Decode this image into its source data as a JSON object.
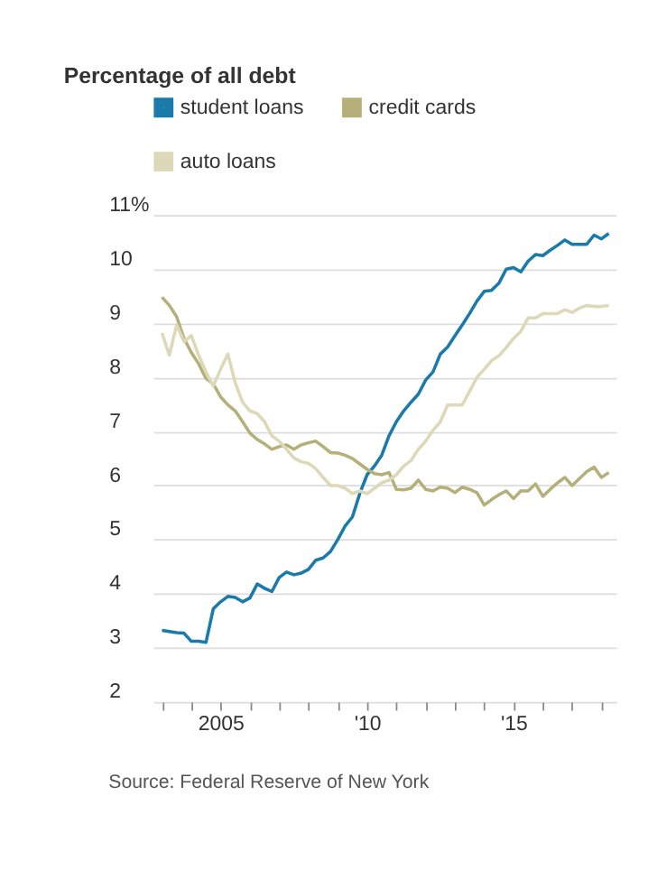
{
  "chart_data": {
    "type": "line",
    "title": "Percentage of all debt",
    "x": [
      2003.0,
      2003.25,
      2003.5,
      2003.75,
      2004.0,
      2004.25,
      2004.5,
      2004.75,
      2005.0,
      2005.25,
      2005.5,
      2005.75,
      2006.0,
      2006.25,
      2006.5,
      2006.75,
      2007.0,
      2007.25,
      2007.5,
      2007.75,
      2008.0,
      2008.25,
      2008.5,
      2008.75,
      2009.0,
      2009.25,
      2009.5,
      2009.75,
      2010.0,
      2010.25,
      2010.5,
      2010.75,
      2011.0,
      2011.25,
      2011.5,
      2011.75,
      2012.0,
      2012.25,
      2012.5,
      2012.75,
      2013.0,
      2013.25,
      2013.5,
      2013.75,
      2014.0,
      2014.25,
      2014.5,
      2014.75,
      2015.0,
      2015.25,
      2015.5,
      2015.75,
      2016.0,
      2016.25,
      2016.5,
      2016.75,
      2017.0,
      2017.25,
      2017.5,
      2017.75,
      2018.0,
      2018.25
    ],
    "series": [
      {
        "name": "student loans",
        "color": "#1a7bab",
        "values": [
          3.32,
          3.3,
          3.28,
          3.27,
          3.12,
          3.12,
          3.1,
          3.72,
          3.85,
          3.95,
          3.93,
          3.85,
          3.92,
          4.18,
          4.1,
          4.04,
          4.3,
          4.4,
          4.35,
          4.38,
          4.45,
          4.62,
          4.66,
          4.78,
          5.0,
          5.25,
          5.42,
          5.85,
          6.2,
          6.36,
          6.56,
          6.92,
          7.18,
          7.38,
          7.54,
          7.69,
          7.95,
          8.1,
          8.43,
          8.56,
          8.77,
          8.97,
          9.18,
          9.41,
          9.59,
          9.61,
          9.74,
          10.0,
          10.03,
          9.95,
          10.15,
          10.27,
          10.25,
          10.35,
          10.44,
          10.54,
          10.46,
          10.46,
          10.46,
          10.63,
          10.56,
          10.66
        ]
      },
      {
        "name": "credit cards",
        "color": "#b5b07a",
        "values": [
          9.48,
          9.33,
          9.12,
          8.72,
          8.46,
          8.25,
          7.98,
          7.88,
          7.64,
          7.49,
          7.38,
          7.18,
          6.97,
          6.85,
          6.77,
          6.67,
          6.72,
          6.75,
          6.67,
          6.75,
          6.79,
          6.82,
          6.72,
          6.61,
          6.6,
          6.56,
          6.5,
          6.4,
          6.3,
          6.22,
          6.2,
          6.24,
          5.93,
          5.92,
          5.95,
          6.1,
          5.93,
          5.9,
          5.97,
          5.95,
          5.87,
          5.97,
          5.93,
          5.87,
          5.64,
          5.74,
          5.83,
          5.9,
          5.76,
          5.9,
          5.9,
          6.03,
          5.8,
          5.93,
          6.05,
          6.15,
          6.0,
          6.13,
          6.26,
          6.34,
          6.15,
          6.24
        ]
      },
      {
        "name": "auto loans",
        "color": "#ddd9b8",
        "values": [
          8.82,
          8.41,
          8.97,
          8.66,
          8.77,
          8.41,
          8.1,
          7.84,
          8.15,
          8.43,
          7.9,
          7.54,
          7.38,
          7.33,
          7.18,
          6.92,
          6.82,
          6.67,
          6.51,
          6.44,
          6.41,
          6.31,
          6.15,
          6.0,
          6.0,
          5.95,
          5.85,
          5.9,
          5.85,
          5.95,
          6.05,
          6.1,
          6.2,
          6.36,
          6.46,
          6.67,
          6.82,
          7.02,
          7.18,
          7.49,
          7.49,
          7.49,
          7.74,
          8.0,
          8.15,
          8.31,
          8.4,
          8.55,
          8.72,
          8.85,
          9.1,
          9.1,
          9.18,
          9.18,
          9.18,
          9.25,
          9.2,
          9.28,
          9.33,
          9.31,
          9.31,
          9.33
        ]
      }
    ],
    "xlim": [
      2002.7,
      2018.5
    ],
    "xticks": [
      {
        "value": 2003,
        "label": null
      },
      {
        "value": 2004,
        "label": null
      },
      {
        "value": 2005,
        "label": "2005"
      },
      {
        "value": 2006,
        "label": null
      },
      {
        "value": 2007,
        "label": null
      },
      {
        "value": 2008,
        "label": null
      },
      {
        "value": 2009,
        "label": null
      },
      {
        "value": 2010,
        "label": "'10"
      },
      {
        "value": 2011,
        "label": null
      },
      {
        "value": 2012,
        "label": null
      },
      {
        "value": 2013,
        "label": null
      },
      {
        "value": 2014,
        "label": null
      },
      {
        "value": 2015,
        "label": "'15"
      },
      {
        "value": 2016,
        "label": null
      },
      {
        "value": 2017,
        "label": null
      },
      {
        "value": 2018,
        "label": null
      }
    ],
    "ylim": [
      2,
      11
    ],
    "yticks": [
      2,
      3,
      4,
      5,
      6,
      7,
      8,
      9,
      10,
      {
        "value": 11,
        "label": "11%"
      }
    ],
    "grid": "y",
    "legend": "top left",
    "marker": "none",
    "line_style": "solid",
    "annotations": [
      "Source: Federal Reserve of New York"
    ]
  }
}
